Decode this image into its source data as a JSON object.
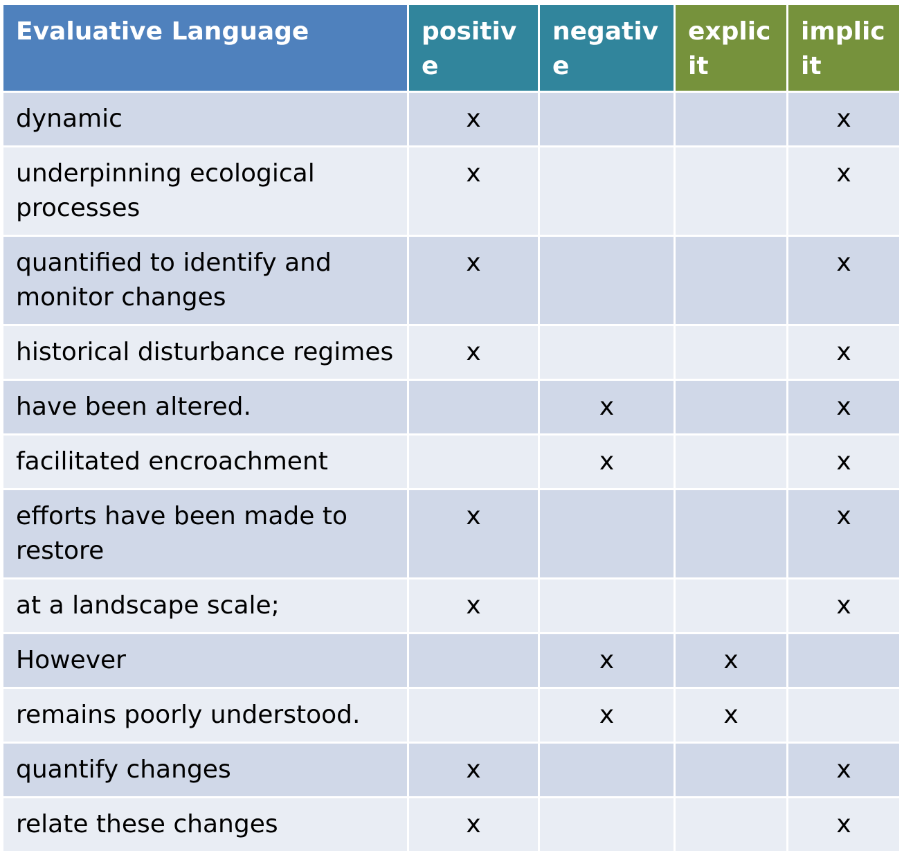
{
  "table": {
    "headers": [
      "Evaluative Language",
      "positive",
      "negative",
      "explicit",
      "implicit"
    ],
    "header_colors": [
      "#4f81bd",
      "#31859c",
      "#31859c",
      "#76923c",
      "#76923c"
    ],
    "row_colors": [
      "#d0d8e8",
      "#e9edf4"
    ],
    "mark": "x",
    "rows": [
      {
        "label": "dynamic",
        "positive": "x",
        "negative": "",
        "explicit": "",
        "implicit": "x"
      },
      {
        "label": "underpinning ecological processes",
        "positive": "x",
        "negative": "",
        "explicit": "",
        "implicit": "x"
      },
      {
        "label": "quantified to identify and monitor changes",
        "positive": "x",
        "negative": "",
        "explicit": "",
        "implicit": "x"
      },
      {
        "label": "historical disturbance regimes",
        "positive": "x",
        "negative": "",
        "explicit": "",
        "implicit": "x"
      },
      {
        "label": "have been altered.",
        "positive": "",
        "negative": "x",
        "explicit": "",
        "implicit": "x"
      },
      {
        "label": "facilitated encroachment",
        "positive": "",
        "negative": "x",
        "explicit": "",
        "implicit": "x"
      },
      {
        "label": "efforts have been made to restore",
        "positive": "x",
        "negative": "",
        "explicit": "",
        "implicit": "x"
      },
      {
        "label": "at a landscape scale;",
        "positive": "x",
        "negative": "",
        "explicit": "",
        "implicit": "x"
      },
      {
        "label": "However",
        "positive": "",
        "negative": "x",
        "explicit": "x",
        "implicit": ""
      },
      {
        "label": "remains poorly understood.",
        "positive": "",
        "negative": "x",
        "explicit": "x",
        "implicit": ""
      },
      {
        "label": "quantify changes",
        "positive": "x",
        "negative": "",
        "explicit": "",
        "implicit": "x"
      },
      {
        "label": "relate these changes",
        "positive": "x",
        "negative": "",
        "explicit": "",
        "implicit": "x"
      }
    ]
  }
}
